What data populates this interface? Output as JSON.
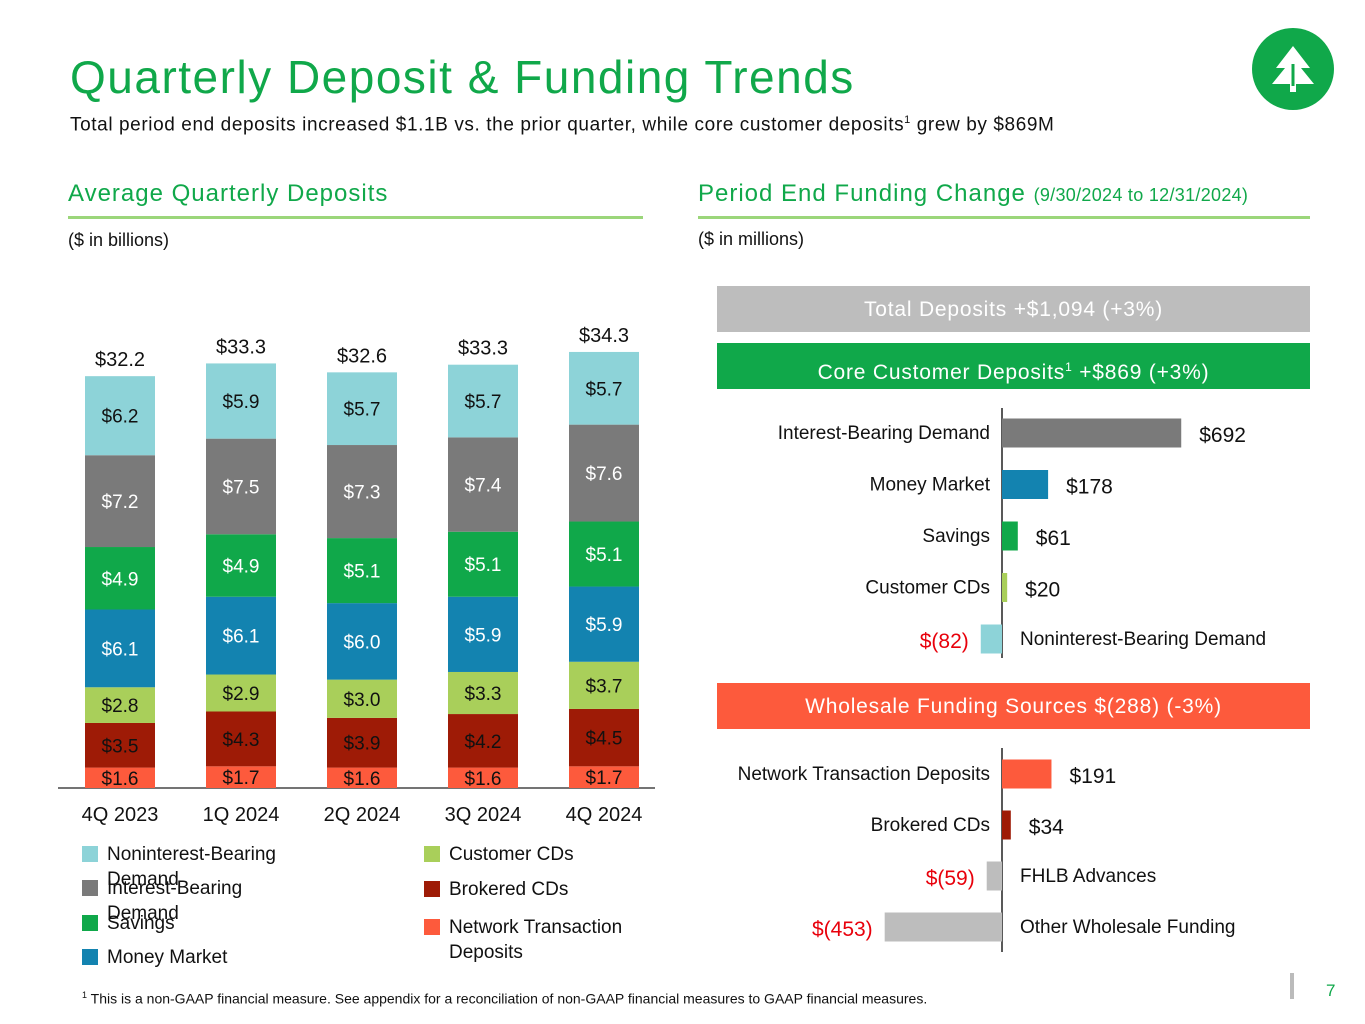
{
  "header": {
    "title": "Quarterly Deposit & Funding Trends",
    "subtitle_pre": "Total period end deposits increased $1.1B vs. the prior quarter, while core customer deposits",
    "subtitle_sup": "1",
    "subtitle_post": " grew by $869M"
  },
  "logo": {
    "icon": "tree-icon",
    "color": "#10a84a"
  },
  "left_section": {
    "title": "Average Quarterly Deposits",
    "units": "($ in billions)"
  },
  "right_section": {
    "title": "Period End Funding Change",
    "range": "(9/30/2024 to 12/31/2024)",
    "units": "($ in millions)"
  },
  "banners": {
    "total": "Total Deposits +$1,094 (+3%)",
    "core_pre": "Core Customer Deposits",
    "core_sup": "1",
    "core_post": " +$869 (+3%)",
    "wholesale": "Wholesale Funding Sources $(288) (-3%)"
  },
  "colors": {
    "green": "#10a84a",
    "banner_gray": "#bdbdbd",
    "wholesale_orange": "#fd5a3c",
    "negative_red": "#e8000b"
  },
  "chart_data": [
    {
      "type": "bar",
      "stacked": true,
      "title": "Average Quarterly Deposits",
      "units": "($ in billions)",
      "categories": [
        "4Q 2023",
        "1Q 2024",
        "2Q 2024",
        "3Q 2024",
        "4Q 2024"
      ],
      "totals": [
        32.2,
        33.3,
        32.6,
        33.3,
        34.3
      ],
      "total_labels": [
        "$32.2",
        "$33.3",
        "$32.6",
        "$33.3",
        "$34.3"
      ],
      "series": [
        {
          "name": "Network Transaction Deposits",
          "color": "#fd5a3c",
          "values": [
            1.6,
            1.7,
            1.6,
            1.6,
            1.7
          ],
          "labels": [
            "$1.6",
            "$1.7",
            "$1.6",
            "$1.6",
            "$1.7"
          ]
        },
        {
          "name": "Brokered CDs",
          "color": "#9e1b06",
          "values": [
            3.5,
            4.3,
            3.9,
            4.2,
            4.5
          ],
          "labels": [
            "$3.5",
            "$4.3",
            "$3.9",
            "$4.2",
            "$4.5"
          ]
        },
        {
          "name": "Customer CDs",
          "color": "#a9cf5a",
          "values": [
            2.8,
            2.9,
            3.0,
            3.3,
            3.7
          ],
          "labels": [
            "$2.8",
            "$2.9",
            "$3.0",
            "$3.3",
            "$3.7"
          ]
        },
        {
          "name": "Money Market",
          "color": "#1383b0",
          "values": [
            6.1,
            6.1,
            6.0,
            5.9,
            5.9
          ],
          "labels": [
            "$6.1",
            "$6.1",
            "$6.0",
            "$5.9",
            "$5.9"
          ]
        },
        {
          "name": "Savings",
          "color": "#10a84a",
          "values": [
            4.9,
            4.9,
            5.1,
            5.1,
            5.1
          ],
          "labels": [
            "$4.9",
            "$4.9",
            "$5.1",
            "$5.1",
            "$5.1"
          ]
        },
        {
          "name": "Interest-Bearing Demand",
          "color": "#7a7a7a",
          "values": [
            7.2,
            7.5,
            7.3,
            7.4,
            7.6
          ],
          "labels": [
            "$7.2",
            "$7.5",
            "$7.3",
            "$7.4",
            "$7.6"
          ]
        },
        {
          "name": "Noninterest-Bearing Demand",
          "color": "#8dd3d8",
          "values": [
            6.2,
            5.9,
            5.7,
            5.7,
            5.7
          ],
          "labels": [
            "$6.2",
            "$5.9",
            "$5.7",
            "$5.7",
            "$5.7"
          ]
        }
      ],
      "legend": {
        "left": [
          "Noninterest-Bearing Demand",
          "Interest-Bearing Demand",
          "Savings",
          "Money Market"
        ],
        "right": [
          "Customer CDs",
          "Brokered CDs",
          "Network Transaction Deposits"
        ]
      },
      "xlabel": "",
      "ylabel": "",
      "ylim": [
        0,
        35
      ],
      "grid": false
    },
    {
      "type": "bar",
      "orientation": "horizontal",
      "title": "Core Customer Deposits +$869 (+3%)",
      "units": "($ in millions)",
      "categories": [
        "Interest-Bearing Demand",
        "Money Market",
        "Savings",
        "Customer CDs",
        "Noninterest-Bearing Demand"
      ],
      "values": [
        692,
        178,
        61,
        20,
        -82
      ],
      "labels": [
        "$692",
        "$178",
        "$61",
        "$20",
        "$(82)"
      ],
      "colors": [
        "#7a7a7a",
        "#1383b0",
        "#10a84a",
        "#a9cf5a",
        "#8dd3d8"
      ]
    },
    {
      "type": "bar",
      "orientation": "horizontal",
      "title": "Wholesale Funding Sources $(288) (-3%)",
      "units": "($ in millions)",
      "categories": [
        "Network Transaction Deposits",
        "Brokered CDs",
        "FHLB Advances",
        "Other Wholesale Funding"
      ],
      "values": [
        191,
        34,
        -59,
        -453
      ],
      "labels": [
        "$191",
        "$34",
        "$(59)",
        "$(453)"
      ],
      "colors": [
        "#fd5a3c",
        "#9e1b06",
        "#bdbdbd",
        "#bdbdbd"
      ]
    }
  ],
  "footnote": {
    "sup": "1",
    "text": " This is a non-GAAP financial measure. See appendix for a reconciliation of non-GAAP financial measures to GAAP financial measures."
  },
  "page_number": "7"
}
